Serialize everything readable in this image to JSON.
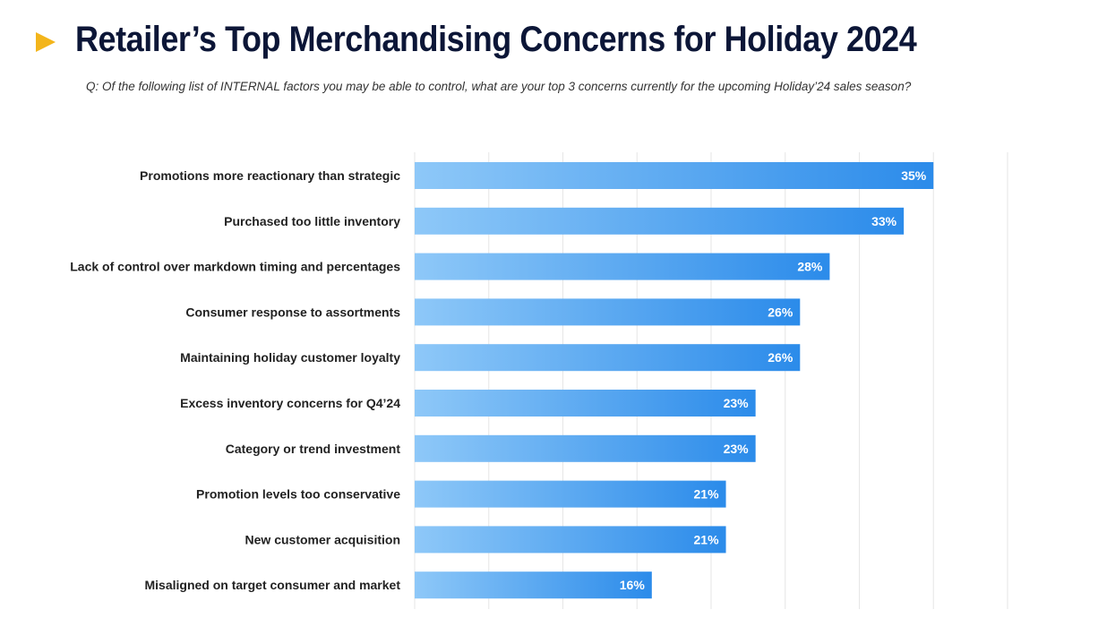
{
  "header": {
    "title": "Retailer’s Top Merchandising Concerns for Holiday 2024",
    "subtitle": "Q: Of the following list of INTERNAL factors you may be able to control, what are your top 3 concerns currently for the upcoming Holiday’24 sales season?"
  },
  "colors": {
    "bar_start": "#8ec8f8",
    "bar_end": "#2b8bea",
    "title": "#0c1637",
    "accent": "#f3b51b"
  },
  "chart_data": {
    "type": "bar",
    "orientation": "horizontal",
    "categories": [
      "Promotions more reactionary than strategic",
      "Purchased too little inventory",
      "Lack of control over markdown timing and percentages",
      "Consumer response to assortments",
      "Maintaining holiday customer loyalty",
      "Excess inventory concerns for Q4’24",
      "Category or trend investment",
      "Promotion levels too conservative",
      "New customer acquisition",
      "Misaligned on target consumer and market"
    ],
    "values": [
      35,
      33,
      28,
      26,
      26,
      23,
      23,
      21,
      21,
      16
    ],
    "value_labels": [
      "35%",
      "33%",
      "28%",
      "26%",
      "26%",
      "23%",
      "23%",
      "21%",
      "21%",
      "16%"
    ],
    "xlim": [
      0,
      40
    ],
    "grid": true,
    "grid_step": 5,
    "legend": "none"
  }
}
